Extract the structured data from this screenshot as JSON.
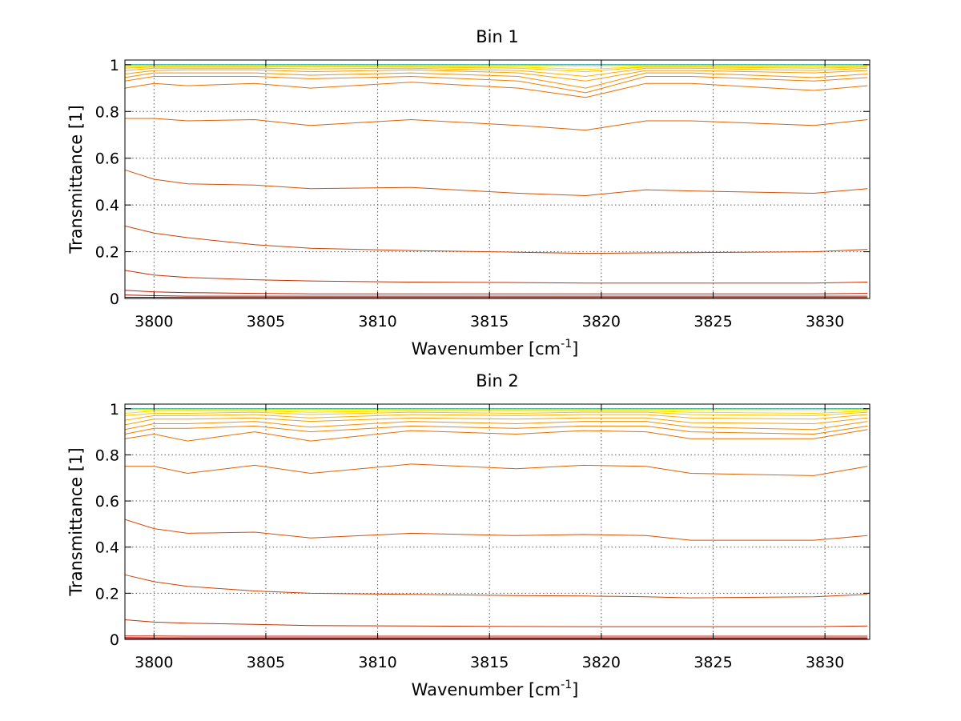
{
  "chart_data": [
    {
      "type": "line",
      "title": "Bin 1",
      "xlabel_main": "Wavenumber [cm",
      "xlabel_sup": "-1",
      "xlabel_end": "]",
      "ylabel": "Transmittance [1]",
      "xlim": [
        3798.7,
        3832.0
      ],
      "ylim": [
        0,
        1.02
      ],
      "xticks": [
        3800,
        3805,
        3810,
        3815,
        3820,
        3825,
        3830
      ],
      "xtick_labels": [
        "3800",
        "3805",
        "3810",
        "3815",
        "3820",
        "3825",
        "3830"
      ],
      "yticks": [
        0,
        0.2,
        0.4,
        0.6,
        0.8,
        1
      ],
      "ytick_labels": [
        "0",
        "0.2",
        "0.4",
        "0.6",
        "0.8",
        "1"
      ],
      "grid": true,
      "x": [
        3798.7,
        3800,
        3801.5,
        3804.5,
        3807,
        3811.5,
        3816.3,
        3819.3,
        3822,
        3824,
        3829.5,
        3831.9
      ],
      "series": [
        {
          "color": "#00a0b0",
          "values": [
            1.0,
            1.0,
            1.0,
            1.0,
            1.0,
            1.0,
            1.0,
            1.0,
            1.0,
            1.0,
            1.0,
            1.0
          ]
        },
        {
          "color": "#7fd06a",
          "values": [
            0.998,
            0.998,
            0.998,
            0.998,
            0.998,
            0.998,
            0.998,
            0.998,
            0.998,
            0.998,
            0.998,
            0.998
          ]
        },
        {
          "color": "#ffff00",
          "values": [
            0.995,
            0.995,
            0.995,
            0.995,
            0.995,
            0.995,
            0.995,
            0.99,
            0.995,
            0.995,
            0.995,
            0.995
          ]
        },
        {
          "color": "#ffd800",
          "values": [
            0.99,
            0.992,
            0.992,
            0.992,
            0.992,
            0.992,
            0.99,
            0.98,
            0.992,
            0.992,
            0.99,
            0.992
          ]
        },
        {
          "color": "#ffc400",
          "values": [
            0.985,
            0.99,
            0.99,
            0.99,
            0.99,
            0.99,
            0.985,
            0.97,
            0.99,
            0.99,
            0.985,
            0.99
          ]
        },
        {
          "color": "#ffb000",
          "values": [
            0.975,
            0.985,
            0.985,
            0.985,
            0.982,
            0.985,
            0.975,
            0.95,
            0.985,
            0.985,
            0.975,
            0.985
          ]
        },
        {
          "color": "#f8a000",
          "values": [
            0.96,
            0.975,
            0.978,
            0.978,
            0.97,
            0.978,
            0.965,
            0.93,
            0.975,
            0.975,
            0.965,
            0.975
          ]
        },
        {
          "color": "#f49000",
          "values": [
            0.945,
            0.965,
            0.965,
            0.965,
            0.955,
            0.965,
            0.95,
            0.9,
            0.965,
            0.965,
            0.945,
            0.96
          ]
        },
        {
          "color": "#f08000",
          "values": [
            0.93,
            0.95,
            0.95,
            0.95,
            0.94,
            0.95,
            0.93,
            0.88,
            0.95,
            0.95,
            0.93,
            0.945
          ]
        },
        {
          "color": "#ea7000",
          "values": [
            0.9,
            0.92,
            0.91,
            0.92,
            0.9,
            0.925,
            0.9,
            0.86,
            0.92,
            0.92,
            0.89,
            0.91
          ]
        },
        {
          "color": "#e06000",
          "values": [
            0.77,
            0.77,
            0.76,
            0.765,
            0.74,
            0.765,
            0.74,
            0.72,
            0.76,
            0.76,
            0.74,
            0.765
          ]
        },
        {
          "color": "#d85000",
          "values": [
            0.55,
            0.51,
            0.49,
            0.485,
            0.47,
            0.475,
            0.45,
            0.44,
            0.465,
            0.46,
            0.45,
            0.47
          ]
        },
        {
          "color": "#d04000",
          "values": [
            0.31,
            0.28,
            0.26,
            0.23,
            0.215,
            0.205,
            0.198,
            0.193,
            0.195,
            0.196,
            0.2,
            0.21
          ]
        },
        {
          "color": "#c83000",
          "values": [
            0.12,
            0.1,
            0.09,
            0.08,
            0.075,
            0.07,
            0.068,
            0.066,
            0.066,
            0.066,
            0.066,
            0.07
          ]
        },
        {
          "color": "#c02000",
          "values": [
            0.035,
            0.028,
            0.025,
            0.022,
            0.02,
            0.02,
            0.02,
            0.02,
            0.02,
            0.02,
            0.02,
            0.022
          ]
        },
        {
          "color": "#b01000",
          "values": [
            0.015,
            0.012,
            0.01,
            0.01,
            0.01,
            0.01,
            0.01,
            0.01,
            0.01,
            0.01,
            0.01,
            0.01
          ]
        },
        {
          "color": "#a00000",
          "values": [
            0.005,
            0.005,
            0.004,
            0.004,
            0.004,
            0.004,
            0.004,
            0.004,
            0.004,
            0.004,
            0.004,
            0.004
          ]
        }
      ]
    },
    {
      "type": "line",
      "title": "Bin 2",
      "xlabel_main": "Wavenumber [cm",
      "xlabel_sup": "-1",
      "xlabel_end": "]",
      "ylabel": "Transmittance [1]",
      "xlim": [
        3798.7,
        3832.0
      ],
      "ylim": [
        0,
        1.02
      ],
      "xticks": [
        3800,
        3805,
        3810,
        3815,
        3820,
        3825,
        3830
      ],
      "xtick_labels": [
        "3800",
        "3805",
        "3810",
        "3815",
        "3820",
        "3825",
        "3830"
      ],
      "yticks": [
        0,
        0.2,
        0.4,
        0.6,
        0.8,
        1
      ],
      "ytick_labels": [
        "0",
        "0.2",
        "0.4",
        "0.6",
        "0.8",
        "1"
      ],
      "grid": true,
      "x": [
        3798.7,
        3800,
        3801.5,
        3804.5,
        3807,
        3811.5,
        3816.2,
        3819.2,
        3822,
        3824,
        3829.5,
        3831.9
      ],
      "series": [
        {
          "color": "#00a0b0",
          "values": [
            1.0,
            1.0,
            1.0,
            1.0,
            1.0,
            1.0,
            1.0,
            1.0,
            1.0,
            1.0,
            1.0,
            1.0
          ]
        },
        {
          "color": "#7fd06a",
          "values": [
            0.998,
            0.998,
            0.998,
            0.998,
            0.998,
            0.998,
            0.998,
            0.998,
            0.998,
            0.998,
            0.998,
            0.998
          ]
        },
        {
          "color": "#ffff00",
          "values": [
            0.99,
            0.995,
            0.995,
            0.995,
            0.993,
            0.995,
            0.995,
            0.995,
            0.995,
            0.993,
            0.99,
            0.995
          ]
        },
        {
          "color": "#ffd800",
          "values": [
            0.98,
            0.99,
            0.99,
            0.99,
            0.985,
            0.99,
            0.99,
            0.99,
            0.99,
            0.985,
            0.98,
            0.99
          ]
        },
        {
          "color": "#ffc400",
          "values": [
            0.97,
            0.98,
            0.98,
            0.985,
            0.975,
            0.985,
            0.98,
            0.985,
            0.985,
            0.975,
            0.97,
            0.985
          ]
        },
        {
          "color": "#ffb000",
          "values": [
            0.95,
            0.97,
            0.97,
            0.975,
            0.96,
            0.975,
            0.97,
            0.975,
            0.975,
            0.96,
            0.955,
            0.975
          ]
        },
        {
          "color": "#f8a000",
          "values": [
            0.93,
            0.955,
            0.955,
            0.96,
            0.945,
            0.96,
            0.955,
            0.96,
            0.96,
            0.94,
            0.935,
            0.96
          ]
        },
        {
          "color": "#f49000",
          "values": [
            0.91,
            0.935,
            0.935,
            0.945,
            0.92,
            0.945,
            0.935,
            0.945,
            0.945,
            0.92,
            0.91,
            0.945
          ]
        },
        {
          "color": "#f08000",
          "values": [
            0.89,
            0.915,
            0.915,
            0.925,
            0.9,
            0.925,
            0.915,
            0.925,
            0.925,
            0.9,
            0.89,
            0.925
          ]
        },
        {
          "color": "#ea7000",
          "values": [
            0.87,
            0.89,
            0.86,
            0.9,
            0.86,
            0.905,
            0.89,
            0.905,
            0.9,
            0.87,
            0.87,
            0.91
          ]
        },
        {
          "color": "#e06000",
          "values": [
            0.75,
            0.75,
            0.72,
            0.755,
            0.72,
            0.76,
            0.74,
            0.755,
            0.75,
            0.72,
            0.71,
            0.75
          ]
        },
        {
          "color": "#d85000",
          "values": [
            0.52,
            0.48,
            0.46,
            0.465,
            0.44,
            0.46,
            0.45,
            0.455,
            0.45,
            0.43,
            0.43,
            0.45
          ]
        },
        {
          "color": "#d04000",
          "values": [
            0.28,
            0.25,
            0.23,
            0.21,
            0.2,
            0.195,
            0.19,
            0.188,
            0.185,
            0.18,
            0.185,
            0.195
          ]
        },
        {
          "color": "#c83000",
          "values": [
            0.085,
            0.075,
            0.07,
            0.065,
            0.06,
            0.058,
            0.056,
            0.055,
            0.055,
            0.055,
            0.055,
            0.058
          ]
        },
        {
          "color": "#c02000",
          "values": [
            0.015,
            0.015,
            0.014,
            0.014,
            0.014,
            0.014,
            0.014,
            0.014,
            0.014,
            0.014,
            0.014,
            0.014
          ]
        },
        {
          "color": "#b01000",
          "values": [
            0.008,
            0.007,
            0.007,
            0.007,
            0.007,
            0.007,
            0.007,
            0.007,
            0.007,
            0.007,
            0.007,
            0.007
          ]
        },
        {
          "color": "#a00000",
          "values": [
            0.003,
            0.003,
            0.003,
            0.003,
            0.003,
            0.003,
            0.003,
            0.003,
            0.003,
            0.003,
            0.003,
            0.003
          ]
        }
      ]
    }
  ]
}
